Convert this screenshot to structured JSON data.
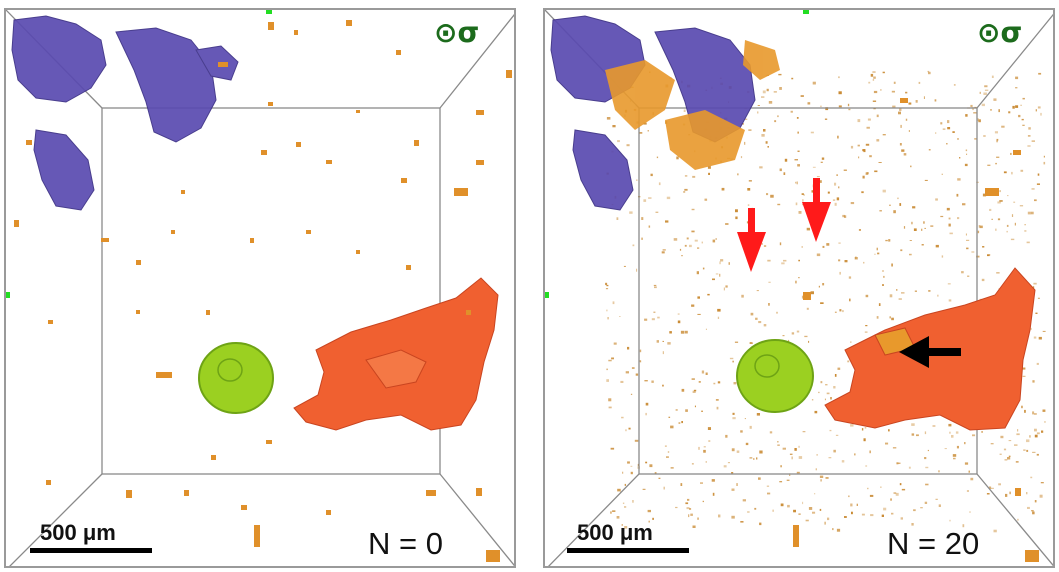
{
  "panels": [
    {
      "id": "left",
      "n_label": "N = 0",
      "scale_label": "500 μm",
      "stress_symbol": "⊙σ"
    },
    {
      "id": "right",
      "n_label": "N = 20",
      "scale_label": "500 μm",
      "stress_symbol": "⊙σ"
    }
  ],
  "colors": {
    "pore_orange": "#e0902a",
    "crack_red": "#f06030",
    "void_purple": "#5a4ab0",
    "inclusion_green": "#9bd021",
    "arrow_red": "#ff1a1a",
    "arrow_black": "#000000",
    "stress_green": "#1c6b1c",
    "box_gray": "#8a8a8a"
  }
}
